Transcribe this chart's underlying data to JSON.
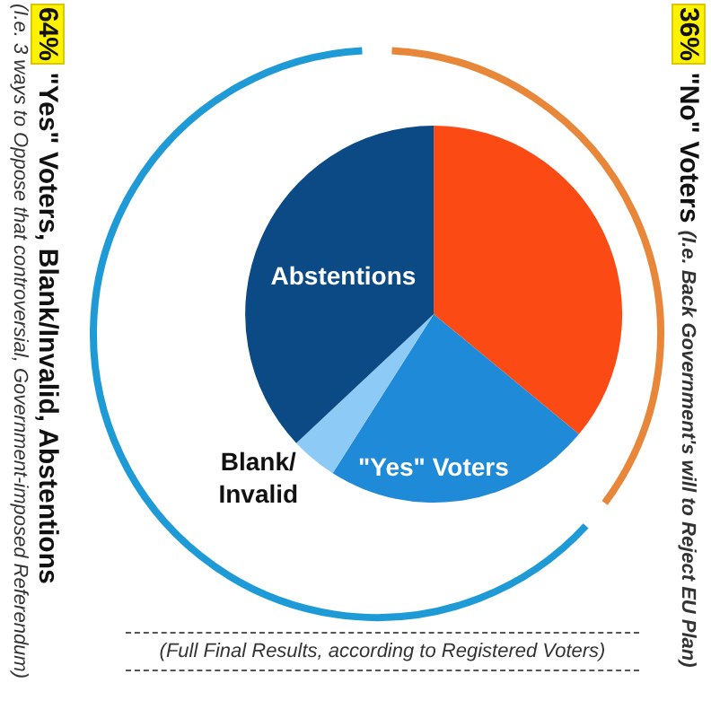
{
  "chart_data": {
    "type": "pie",
    "categories": [
      null,
      "\"Yes\" Voters",
      "Blank/\nInvalid",
      "Abstentions"
    ],
    "values": [
      36,
      23,
      4,
      37
    ],
    "colors": [
      "#fc4a14",
      "#1f8ad8",
      "#8ecaf6",
      "#0b4a85"
    ],
    "legend": false,
    "annotations": [
      "64%",
      "\"Yes\" Voters, Blank/Invalid, Abstentions",
      "(I.e. 3 ways to Oppose that controversial, Government-imposed Referendum)",
      "36%",
      "\"No\" Voters",
      "(I.e. Back Government's will to Reject EU Plan)",
      "(Full Final Results, according to Registered Voters)"
    ]
  }
}
